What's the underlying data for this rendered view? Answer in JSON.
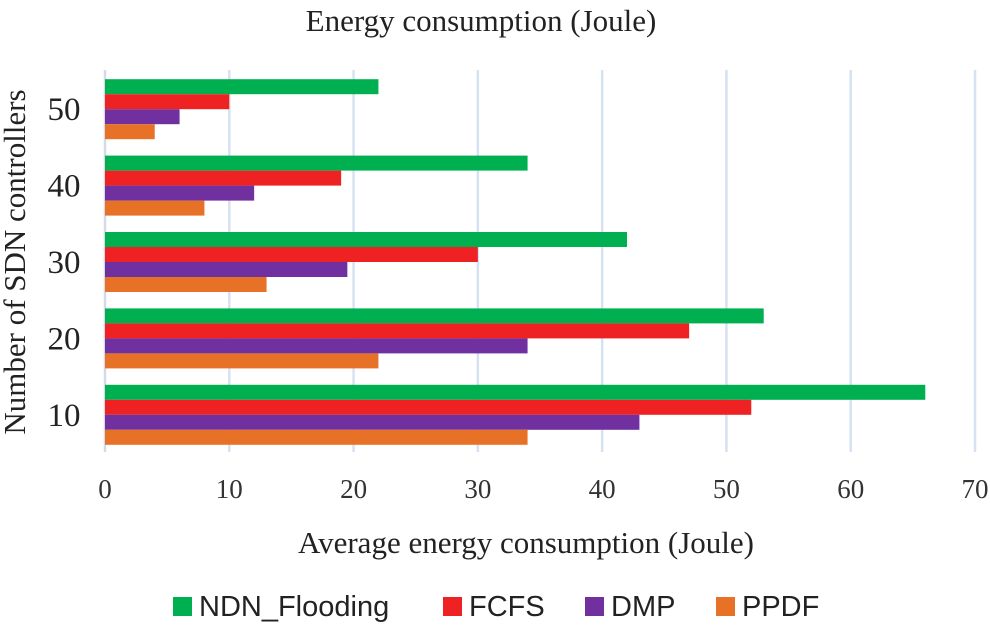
{
  "chart_data": {
    "type": "bar",
    "orientation": "horizontal",
    "title": "Energy consumption (Joule)",
    "xlabel": "Average energy consumption (Joule)",
    "ylabel": "Number of SDN controllers",
    "categories": [
      "50",
      "40",
      "30",
      "20",
      "10"
    ],
    "xlim": [
      0,
      70
    ],
    "xticks": [
      "0",
      "10",
      "20",
      "30",
      "40",
      "50",
      "60",
      "70"
    ],
    "grid": "vertical",
    "legend_position": "bottom",
    "series": [
      {
        "name": "NDN_Flooding",
        "color": "#00b050",
        "values": [
          22,
          34,
          42,
          53,
          66
        ]
      },
      {
        "name": "FCFS",
        "color": "#ee2222",
        "values": [
          10,
          19,
          30,
          47,
          52
        ]
      },
      {
        "name": "DMP",
        "color": "#7030a0",
        "values": [
          6,
          12,
          19.5,
          34,
          43
        ]
      },
      {
        "name": "PPDF",
        "color": "#e87128",
        "values": [
          4,
          8,
          13,
          22,
          34
        ]
      }
    ]
  }
}
